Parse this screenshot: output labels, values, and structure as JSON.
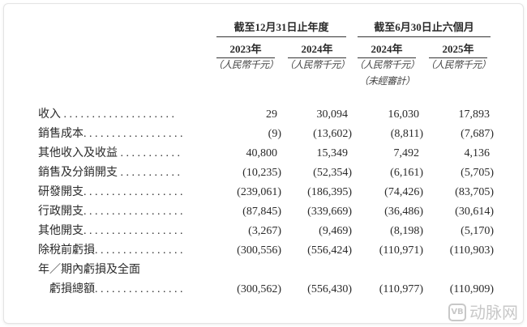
{
  "header": {
    "group1": "截至12月31日止年度",
    "group2": "截至6月30日止六個月",
    "years": [
      "2023年",
      "2024年",
      "2024年",
      "2025年"
    ],
    "units": [
      "（人民幣千元）",
      "（人民幣千元）",
      "（人民幣千元）",
      "（人民幣千元）"
    ],
    "unaudited": "（未經審計）"
  },
  "rows": [
    {
      "label": "收入 . . . . . . . . . . . . . . . . . . . .",
      "values": [
        "29",
        "30,094",
        "16,030",
        "17,893"
      ]
    },
    {
      "label": "銷售成本. . . . . . . . . . . . . . . . . .",
      "values": [
        "(9)",
        "(13,602)",
        "(8,811)",
        "(7,687)"
      ]
    },
    {
      "label": "其他收入及收益 . . . . . . . . . . .",
      "values": [
        "40,800",
        "15,349",
        "7,492",
        "4,136"
      ]
    },
    {
      "label": "銷售及分銷開支 . . . . . . . . . . .",
      "values": [
        "(10,235)",
        "(52,354)",
        "(6,161)",
        "(5,705)"
      ]
    },
    {
      "label": "研發開支. . . . . . . . . . . . . . . . . .",
      "values": [
        "(239,061)",
        "(186,395)",
        "(74,426)",
        "(83,705)"
      ]
    },
    {
      "label": "行政開支. . . . . . . . . . . . . . . . . .",
      "values": [
        "(87,845)",
        "(339,669)",
        "(36,486)",
        "(30,614)"
      ]
    },
    {
      "label": "其他開支. . . . . . . . . . . . . . . . . .",
      "values": [
        "(3,267)",
        "(9,469)",
        "(8,198)",
        "(5,170)"
      ]
    },
    {
      "label": "除稅前虧損. . . . . . . . . . . . . . . .",
      "values": [
        "(300,556)",
        "(556,424)",
        "(110,971)",
        "(110,903)"
      ]
    },
    {
      "label": "年／期內虧損及全面",
      "values": [
        "",
        "",
        "",
        ""
      ]
    },
    {
      "label": "　虧損總額. . . . . . . . . . . . . . . .",
      "values": [
        "(300,562)",
        "(556,430)",
        "(110,977)",
        "(110,909)"
      ]
    }
  ],
  "watermark": {
    "logo": "VB",
    "text": "动脉网"
  }
}
